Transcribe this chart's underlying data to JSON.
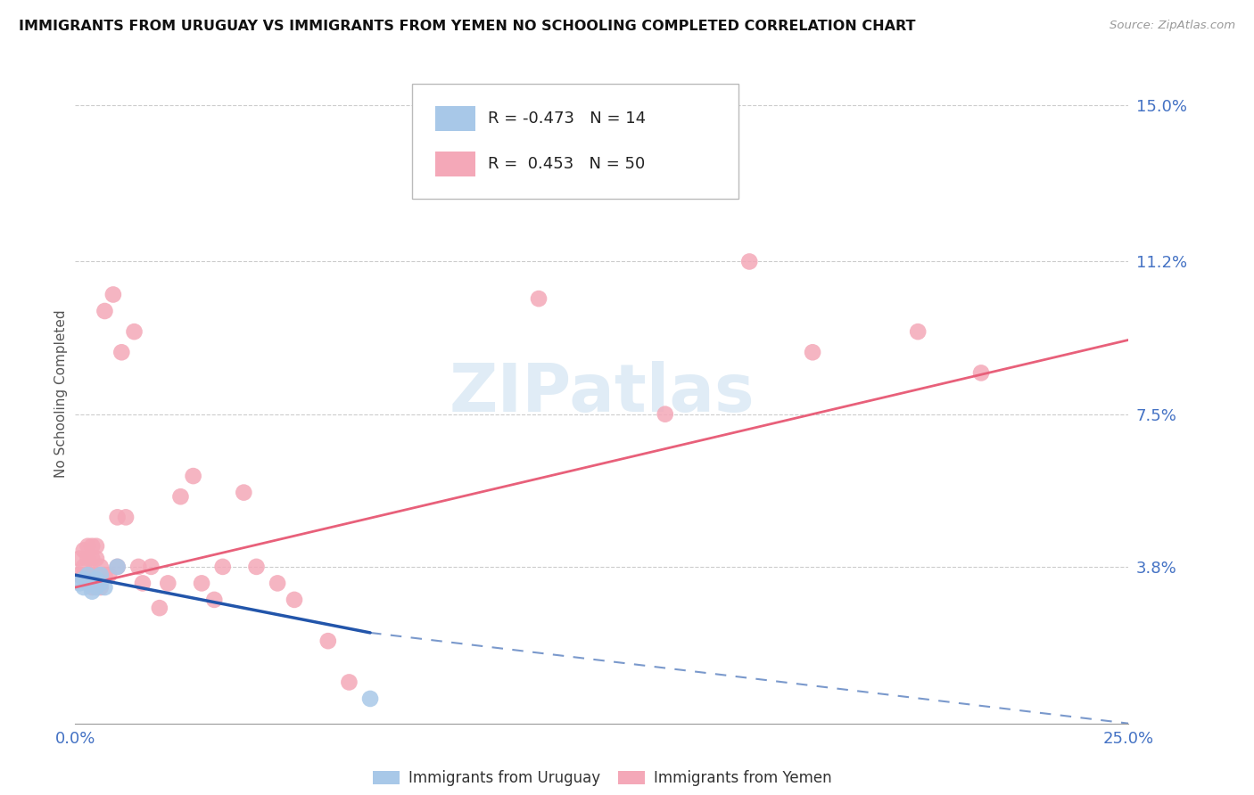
{
  "title": "IMMIGRANTS FROM URUGUAY VS IMMIGRANTS FROM YEMEN NO SCHOOLING COMPLETED CORRELATION CHART",
  "source": "Source: ZipAtlas.com",
  "ylabel": "No Schooling Completed",
  "legend_r_uruguay": "-0.473",
  "legend_n_uruguay": "14",
  "legend_r_yemen": "0.453",
  "legend_n_yemen": "50",
  "uruguay_color": "#a8c8e8",
  "yemen_color": "#f4a8b8",
  "trendline_uruguay_color": "#2255aa",
  "trendline_yemen_color": "#e8607a",
  "watermark_color": "#cce0f0",
  "xlim": [
    0.0,
    0.25
  ],
  "ylim": [
    0.0,
    0.16
  ],
  "ytick_values": [
    0.038,
    0.075,
    0.112,
    0.15
  ],
  "ytick_labels": [
    "3.8%",
    "7.5%",
    "11.2%",
    "15.0%"
  ],
  "uru_x": [
    0.001,
    0.002,
    0.002,
    0.003,
    0.003,
    0.004,
    0.004,
    0.005,
    0.005,
    0.006,
    0.006,
    0.007,
    0.01,
    0.07
  ],
  "uru_y": [
    0.034,
    0.033,
    0.035,
    0.034,
    0.036,
    0.032,
    0.034,
    0.033,
    0.035,
    0.036,
    0.034,
    0.033,
    0.038,
    0.006
  ],
  "yem_x": [
    0.001,
    0.001,
    0.002,
    0.002,
    0.002,
    0.003,
    0.003,
    0.003,
    0.003,
    0.004,
    0.004,
    0.004,
    0.004,
    0.005,
    0.005,
    0.005,
    0.005,
    0.006,
    0.006,
    0.007,
    0.007,
    0.008,
    0.009,
    0.01,
    0.01,
    0.011,
    0.012,
    0.014,
    0.015,
    0.016,
    0.018,
    0.02,
    0.022,
    0.025,
    0.028,
    0.03,
    0.033,
    0.035,
    0.04,
    0.043,
    0.048,
    0.052,
    0.06,
    0.065,
    0.11,
    0.14,
    0.16,
    0.175,
    0.2,
    0.215
  ],
  "yem_y": [
    0.036,
    0.04,
    0.036,
    0.038,
    0.042,
    0.034,
    0.036,
    0.04,
    0.043,
    0.033,
    0.036,
    0.04,
    0.043,
    0.034,
    0.036,
    0.04,
    0.043,
    0.033,
    0.038,
    0.036,
    0.1,
    0.036,
    0.104,
    0.038,
    0.05,
    0.09,
    0.05,
    0.095,
    0.038,
    0.034,
    0.038,
    0.028,
    0.034,
    0.055,
    0.06,
    0.034,
    0.03,
    0.038,
    0.056,
    0.038,
    0.034,
    0.03,
    0.02,
    0.01,
    0.103,
    0.075,
    0.112,
    0.09,
    0.095,
    0.085
  ],
  "uru_trend_x0": 0.0,
  "uru_trend_y0": 0.036,
  "uru_trend_x1": 0.07,
  "uru_trend_y1": 0.022,
  "uru_trend_dash_x1": 0.25,
  "uru_trend_dash_y1": 0.0,
  "yem_trend_x0": 0.0,
  "yem_trend_y0": 0.033,
  "yem_trend_x1": 0.25,
  "yem_trend_y1": 0.093
}
